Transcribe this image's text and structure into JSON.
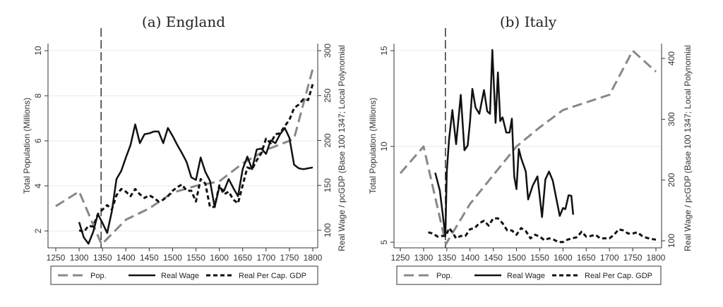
{
  "chart_data": [
    {
      "type": "line",
      "title": "(a) England",
      "ylabel": "Total Population (Millions)",
      "y2label": "Real Wage / pcGDP (Base 100 1347; Local Polynomial",
      "xlim": [
        1250,
        1800
      ],
      "ylim": [
        2,
        10
      ],
      "y2lim": [
        100,
        300
      ],
      "xticks": [
        1250,
        1300,
        1350,
        1400,
        1450,
        1500,
        1550,
        1600,
        1650,
        1700,
        1750,
        1800
      ],
      "yticks": [
        2,
        4,
        6,
        8,
        10
      ],
      "y2ticks": [
        100,
        150,
        200,
        250,
        300
      ],
      "grid": true,
      "vline": 1347,
      "legend_position": "bottom",
      "series": [
        {
          "name": "Pop.",
          "axis": "left",
          "style": "grey-long-dash",
          "x": [
            1250,
            1300,
            1348,
            1400,
            1450,
            1500,
            1550,
            1600,
            1650,
            1700,
            1750,
            1760,
            1800
          ],
          "y": [
            3.1,
            3.75,
            1.4,
            2.5,
            3.0,
            3.7,
            4.0,
            4.2,
            5.0,
            5.6,
            6.0,
            6.1,
            9.2
          ]
        },
        {
          "name": "Real Wage",
          "axis": "right",
          "style": "black-solid",
          "x": [
            1300,
            1310,
            1320,
            1330,
            1340,
            1350,
            1360,
            1370,
            1380,
            1390,
            1400,
            1410,
            1420,
            1430,
            1440,
            1450,
            1460,
            1470,
            1480,
            1490,
            1500,
            1510,
            1520,
            1530,
            1540,
            1550,
            1560,
            1570,
            1580,
            1590,
            1600,
            1610,
            1620,
            1630,
            1640,
            1650,
            1660,
            1670,
            1680,
            1690,
            1700,
            1710,
            1720,
            1730,
            1740,
            1750,
            1760,
            1770,
            1780,
            1790,
            1800
          ],
          "y": [
            109,
            92,
            85,
            98,
            118,
            108,
            97,
            121,
            157,
            166,
            181,
            195,
            218,
            197,
            207,
            208,
            210,
            210,
            197,
            214,
            205,
            195,
            186,
            176,
            159,
            156,
            181,
            165,
            155,
            126,
            148,
            144,
            157,
            147,
            138,
            168,
            182,
            168,
            190,
            191,
            185,
            200,
            197,
            207,
            214,
            203,
            173,
            169,
            168,
            169,
            170
          ]
        },
        {
          "name": "Real Per Cap. GDP",
          "axis": "right",
          "style": "black-short-dash",
          "x": [
            1300,
            1310,
            1320,
            1330,
            1340,
            1350,
            1360,
            1370,
            1380,
            1390,
            1400,
            1410,
            1420,
            1430,
            1440,
            1450,
            1460,
            1470,
            1480,
            1490,
            1500,
            1510,
            1520,
            1530,
            1540,
            1550,
            1560,
            1570,
            1580,
            1590,
            1600,
            1610,
            1620,
            1630,
            1640,
            1650,
            1660,
            1670,
            1680,
            1690,
            1700,
            1710,
            1720,
            1730,
            1740,
            1750,
            1760,
            1770,
            1780,
            1790,
            1800
          ],
          "y": [
            100,
            98,
            105,
            104,
            118,
            123,
            128,
            123,
            139,
            146,
            143,
            138,
            146,
            140,
            136,
            139,
            136,
            132,
            134,
            138,
            144,
            148,
            151,
            144,
            144,
            132,
            157,
            152,
            126,
            126,
            150,
            140,
            143,
            134,
            130,
            150,
            170,
            168,
            178,
            186,
            202,
            197,
            207,
            208,
            216,
            223,
            236,
            240,
            246,
            245,
            263
          ]
        }
      ]
    },
    {
      "type": "line",
      "title": "(b) Italy",
      "ylabel": "Total Population (Millions)",
      "y2label": "Real Wage / pcGDP (Base 100 1347; Local Polynomial",
      "xlim": [
        1250,
        1800
      ],
      "ylim": [
        5,
        15
      ],
      "y2lim": [
        100,
        400
      ],
      "xticks": [
        1250,
        1300,
        1350,
        1400,
        1450,
        1500,
        1550,
        1600,
        1650,
        1700,
        1750,
        1800
      ],
      "yticks": [
        5,
        10,
        15
      ],
      "y2ticks": [
        100,
        200,
        300,
        400
      ],
      "grid": true,
      "vline": 1347,
      "legend_position": "bottom",
      "series": [
        {
          "name": "Pop.",
          "axis": "left",
          "style": "grey-long-dash",
          "x": [
            1250,
            1300,
            1348,
            1400,
            1450,
            1500,
            1550,
            1600,
            1650,
            1700,
            1750,
            1800
          ],
          "y": [
            8.6,
            10.0,
            4.9,
            7.0,
            8.5,
            10.0,
            11.0,
            11.9,
            12.3,
            12.7,
            15.0,
            13.9
          ]
        },
        {
          "name": "Real Wage",
          "axis": "right",
          "style": "black-solid",
          "x": [
            1325,
            1335,
            1347,
            1350,
            1355,
            1362,
            1370,
            1380,
            1388,
            1395,
            1400,
            1405,
            1412,
            1420,
            1430,
            1437,
            1443,
            1448,
            1455,
            1460,
            1465,
            1470,
            1478,
            1485,
            1490,
            1495,
            1500,
            1505,
            1510,
            1520,
            1525,
            1535,
            1545,
            1555,
            1562,
            1570,
            1578,
            1585,
            1593,
            1600,
            1605,
            1612,
            1618,
            1622
          ],
          "y": [
            212,
            183,
            108,
            214,
            268,
            315,
            259,
            340,
            249,
            257,
            296,
            350,
            319,
            309,
            348,
            313,
            309,
            414,
            294,
            377,
            297,
            303,
            278,
            278,
            301,
            206,
            185,
            251,
            236,
            214,
            168,
            191,
            206,
            139,
            201,
            214,
            199,
            172,
            141,
            154,
            152,
            175,
            174,
            143
          ]
        },
        {
          "name": "Real Per Cap. GDP",
          "axis": "right",
          "style": "black-short-dash",
          "x": [
            1310,
            1320,
            1330,
            1340,
            1348,
            1355,
            1362,
            1370,
            1380,
            1390,
            1400,
            1410,
            1420,
            1430,
            1440,
            1450,
            1460,
            1470,
            1480,
            1490,
            1500,
            1510,
            1520,
            1530,
            1540,
            1550,
            1560,
            1570,
            1580,
            1590,
            1600,
            1610,
            1620,
            1630,
            1640,
            1650,
            1660,
            1670,
            1680,
            1690,
            1700,
            1710,
            1720,
            1730,
            1740,
            1750,
            1760,
            1770,
            1780,
            1790,
            1800
          ],
          "y": [
            114,
            112,
            107,
            108,
            108,
            121,
            114,
            104,
            108,
            108,
            119,
            121,
            129,
            133,
            125,
            137,
            137,
            129,
            117,
            117,
            110,
            121,
            116,
            104,
            110,
            107,
            101,
            104,
            102,
            98,
            98,
            102,
            104,
            106,
            115,
            107,
            108,
            110,
            104,
            104,
            104,
            110,
            119,
            117,
            112,
            112,
            114,
            108,
            105,
            103,
            102
          ]
        }
      ]
    }
  ]
}
